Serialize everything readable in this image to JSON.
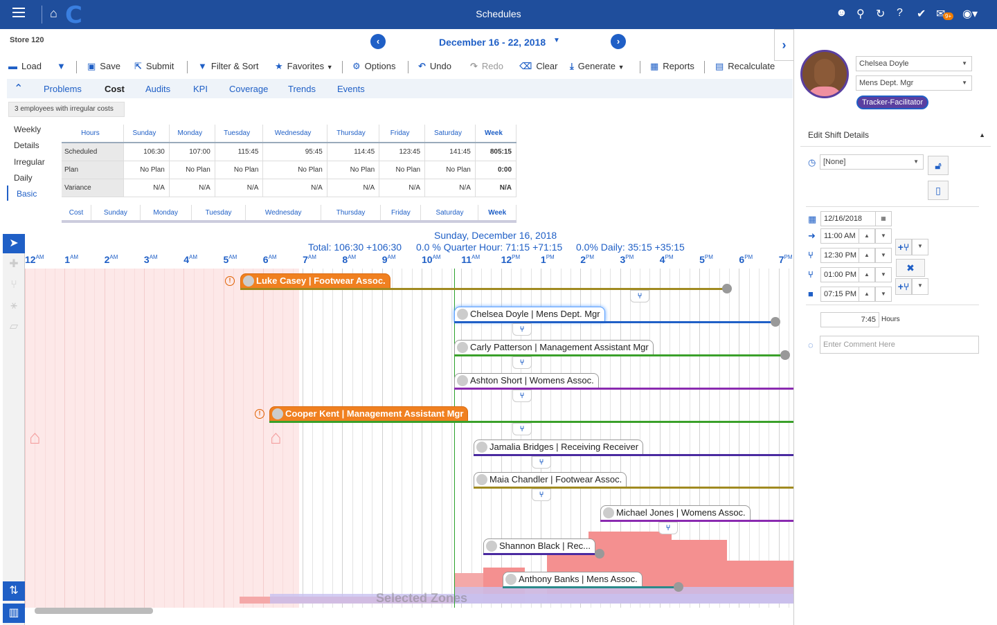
{
  "app": {
    "title": "Schedules",
    "mail_badge": "9+"
  },
  "header": {
    "store": "Store 120",
    "week_range": "December 16 - 22, 2018"
  },
  "toolbar": {
    "load": "Load",
    "save": "Save",
    "submit": "Submit",
    "filter_sort": "Filter & Sort",
    "favorites": "Favorites",
    "options": "Options",
    "undo": "Undo",
    "redo": "Redo",
    "clear": "Clear",
    "generate": "Generate",
    "reports": "Reports",
    "recalculate": "Recalculate"
  },
  "tabs": [
    "Problems",
    "Cost",
    "Audits",
    "KPI",
    "Coverage",
    "Trends",
    "Events"
  ],
  "active_tab": "Cost",
  "irregular_notice": "3 employees with irregular costs",
  "side_nav": [
    "Weekly",
    "Details",
    "Irregular",
    "Daily",
    "Basic"
  ],
  "hours_table": {
    "headers": [
      "Hours",
      "Sunday",
      "Monday",
      "Tuesday",
      "Wednesday",
      "Thursday",
      "Friday",
      "Saturday",
      "Week"
    ],
    "rows": [
      [
        "Scheduled",
        "106:30",
        "107:00",
        "115:45",
        "95:45",
        "114:45",
        "123:45",
        "141:45",
        "805:15"
      ],
      [
        "Plan",
        "No Plan",
        "No Plan",
        "No Plan",
        "No Plan",
        "No Plan",
        "No Plan",
        "No Plan",
        "0:00"
      ],
      [
        "Variance",
        "N/A",
        "N/A",
        "N/A",
        "N/A",
        "N/A",
        "N/A",
        "N/A",
        "N/A"
      ]
    ]
  },
  "cost_table": {
    "headers": [
      "Cost",
      "Sunday",
      "Monday",
      "Tuesday",
      "Wednesday",
      "Thursday",
      "Friday",
      "Saturday",
      "Week"
    ]
  },
  "gantt": {
    "date": "Sunday, December 16, 2018",
    "total": "Total: 106:30 +106:30",
    "quarter": "0.0 % Quarter Hour: 71:15 +71:15",
    "daily": "0.0% Daily: 35:15 +35:15",
    "hours": [
      {
        "h": "12",
        "ap": "AM"
      },
      {
        "h": "1",
        "ap": "AM"
      },
      {
        "h": "2",
        "ap": "AM"
      },
      {
        "h": "3",
        "ap": "AM"
      },
      {
        "h": "4",
        "ap": "AM"
      },
      {
        "h": "5",
        "ap": "AM"
      },
      {
        "h": "6",
        "ap": "AM"
      },
      {
        "h": "7",
        "ap": "AM"
      },
      {
        "h": "8",
        "ap": "AM"
      },
      {
        "h": "9",
        "ap": "AM"
      },
      {
        "h": "10",
        "ap": "AM"
      },
      {
        "h": "11",
        "ap": "AM"
      },
      {
        "h": "12",
        "ap": "PM"
      },
      {
        "h": "1",
        "ap": "PM"
      },
      {
        "h": "2",
        "ap": "PM"
      },
      {
        "h": "3",
        "ap": "PM"
      },
      {
        "h": "4",
        "ap": "PM"
      },
      {
        "h": "5",
        "ap": "PM"
      },
      {
        "h": "6",
        "ap": "PM"
      },
      {
        "h": "7",
        "ap": "PM"
      }
    ],
    "shifts": [
      {
        "label": "Luke Casey | Footwear Assoc.",
        "color": "#a08a20",
        "highlight": true
      },
      {
        "label": "Chelsea Doyle | Mens Dept. Mgr",
        "color": "#1f5fc6",
        "selected": true
      },
      {
        "label": "Carly Patterson | Management Assistant Mgr",
        "color": "#3aa02a"
      },
      {
        "label": "Ashton Short | Womens Assoc.",
        "color": "#8a2ab0"
      },
      {
        "label": "Cooper Kent | Management Assistant Mgr",
        "color": "#3aa02a",
        "highlight": true
      },
      {
        "label": "Jamalia Bridges | Receiving Receiver",
        "color": "#4a2aa0"
      },
      {
        "label": "Maia Chandler | Footwear Assoc.",
        "color": "#a08a20"
      },
      {
        "label": "Michael Jones | Womens Assoc.",
        "color": "#8a2ab0"
      },
      {
        "label": "Shannon Black | Rec...",
        "color": "#4a2aa0"
      },
      {
        "label": "Anthony Banks | Mens Assoc.",
        "color": "#2a8a8a"
      }
    ],
    "selected_zones": "Selected Zones"
  },
  "right_panel": {
    "employee": "Chelsea Doyle",
    "role": "Mens Dept. Mgr",
    "badge": "Tracker-Facilitator",
    "section": "Edit Shift Details",
    "activity": "[None]",
    "date": "12/16/2018",
    "start": "11:00 AM",
    "meal_start": "12:30 PM",
    "meal_end": "01:00 PM",
    "end": "07:15 PM",
    "hours_value": "7:45",
    "hours_label": "Hours",
    "comment_placeholder": "Enter Comment Here"
  }
}
